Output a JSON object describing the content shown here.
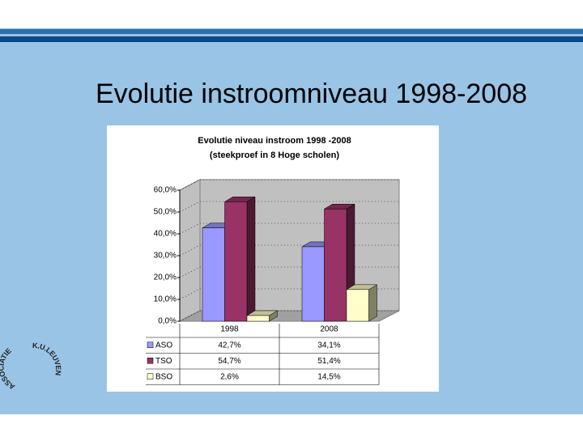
{
  "slide_title": "Evolutie instroomniveau 1998-2008",
  "logo": {
    "top": "ASSOCIATIE",
    "side": "K.U.LEUVEN"
  },
  "chart_data": {
    "type": "bar3d",
    "title": "Evolutie niveau instroom 1998 -2008",
    "subtitle": "(steekproef in 8 Hoge scholen)",
    "categories": [
      "1998",
      "2008"
    ],
    "series": [
      {
        "name": "ASO",
        "color": "#9999ff",
        "values": [
          42.7,
          34.1
        ],
        "value_labels": [
          "42,7%",
          "34,1%"
        ]
      },
      {
        "name": "TSO",
        "color": "#993366",
        "values": [
          54.7,
          51.4
        ],
        "value_labels": [
          "54,7%",
          "51,4%"
        ]
      },
      {
        "name": "BSO",
        "color": "#ffffcc",
        "values": [
          2.6,
          14.5
        ],
        "value_labels": [
          "2,6%",
          "14,5%"
        ]
      }
    ],
    "ylim": [
      0,
      60
    ],
    "yticks": [
      {
        "value": 0,
        "label": "0,0%"
      },
      {
        "value": 10,
        "label": "10,0%"
      },
      {
        "value": 20,
        "label": "20,0%"
      },
      {
        "value": 30,
        "label": "30,0%"
      },
      {
        "value": 40,
        "label": "40,0%"
      },
      {
        "value": 50,
        "label": "50,0%"
      },
      {
        "value": 60,
        "label": "60,0%"
      }
    ],
    "grid": true,
    "legend": "table"
  }
}
